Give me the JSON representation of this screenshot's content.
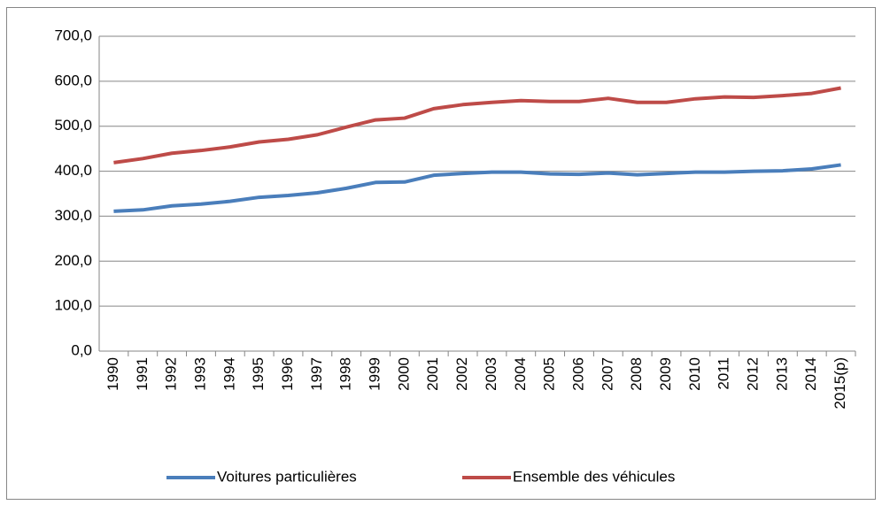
{
  "chart_data": {
    "type": "line",
    "categories": [
      "1990",
      "1991",
      "1992",
      "1993",
      "1994",
      "1995",
      "1996",
      "1997",
      "1998",
      "1999",
      "2000",
      "2001",
      "2002",
      "2003",
      "2004",
      "2005",
      "2006",
      "2007",
      "2008",
      "2009",
      "2010",
      "2011",
      "2012",
      "2013",
      "2014",
      "2015(p)"
    ],
    "series": [
      {
        "name": "Voitures particulières",
        "color": "#4a7ebb",
        "values": [
          311,
          314,
          323,
          327,
          333,
          342,
          346,
          352,
          362,
          375,
          376,
          391,
          395,
          398,
          398,
          394,
          393,
          396,
          392,
          395,
          398,
          398,
          400,
          401,
          405,
          414
        ]
      },
      {
        "name": "Ensemble des véhicules",
        "color": "#be4b48",
        "values": [
          419,
          428,
          440,
          446,
          454,
          465,
          471,
          481,
          498,
          514,
          518,
          539,
          548,
          553,
          557,
          555,
          555,
          562,
          553,
          553,
          561,
          565,
          564,
          568,
          573,
          585
        ]
      }
    ],
    "ylim": [
      0,
      700
    ],
    "yticks": [
      {
        "value": 0,
        "label": "0,0"
      },
      {
        "value": 100,
        "label": "100,0"
      },
      {
        "value": 200,
        "label": "200,0"
      },
      {
        "value": 300,
        "label": "300,0"
      },
      {
        "value": 400,
        "label": "400,0"
      },
      {
        "value": 500,
        "label": "500,0"
      },
      {
        "value": 600,
        "label": "600,0"
      },
      {
        "value": 700,
        "label": "700,0"
      }
    ],
    "grid": true,
    "legend": "bottom"
  }
}
